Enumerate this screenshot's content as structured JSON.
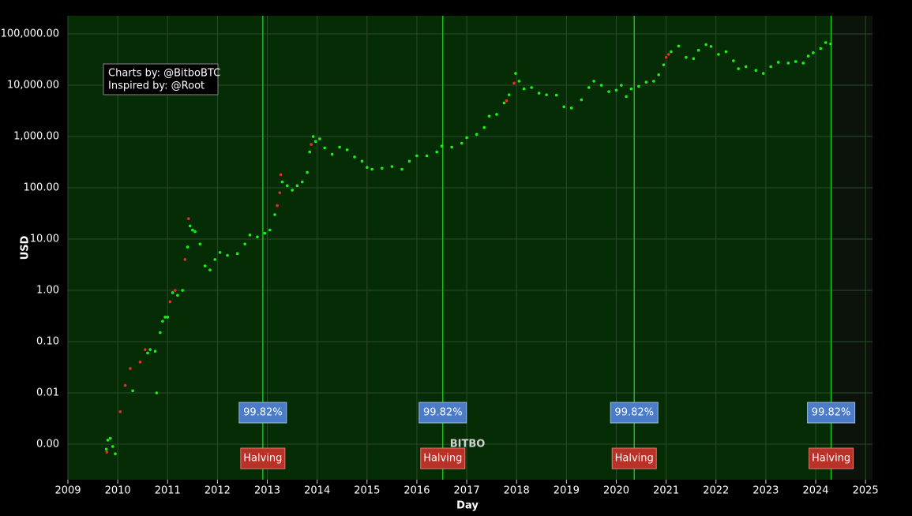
{
  "chart_data": {
    "type": "scatter",
    "y_label": "USD",
    "x_label": "Day",
    "log_y": true,
    "grid": true,
    "xlim": [
      2009,
      2025.14
    ],
    "xticks": [
      2009,
      2010,
      2011,
      2012,
      2013,
      2014,
      2015,
      2016,
      2017,
      2018,
      2019,
      2020,
      2021,
      2022,
      2023,
      2024,
      2025
    ],
    "ylim": [
      0.000203,
      226000
    ],
    "yticks": [
      {
        "value": 0.001,
        "label": "0.00"
      },
      {
        "value": 0.01,
        "label": "0.01"
      },
      {
        "value": 0.1,
        "label": "0.10"
      },
      {
        "value": 1,
        "label": "1.00"
      },
      {
        "value": 10,
        "label": "10.00"
      },
      {
        "value": 100,
        "label": "100.00"
      },
      {
        "value": 1000,
        "label": "1,000.00"
      },
      {
        "value": 10000,
        "label": "10,000.00"
      },
      {
        "value": 100000,
        "label": "100,000.00"
      }
    ],
    "credits": [
      "Charts by: @BitboBTC",
      "Inspired by: @Root"
    ],
    "watermark": "BITBO",
    "halvings": [
      {
        "x": 2012.91,
        "label": "99.82%",
        "event": "Halving"
      },
      {
        "x": 2016.52,
        "label": "99.82%",
        "event": "Halving"
      },
      {
        "x": 2020.36,
        "label": "99.82%",
        "event": "Halving"
      },
      {
        "x": 2024.31,
        "label": "99.82%",
        "event": "Halving"
      }
    ],
    "series": [
      {
        "color": "#19f019",
        "x": [
          2009.77,
          2009.8,
          2009.85,
          2009.9,
          2009.95,
          2010.3,
          2010.6,
          2010.65,
          2010.75,
          2010.78,
          2010.85,
          2010.9,
          2010.95,
          2011.0,
          2011.1,
          2011.2,
          2011.3,
          2011.4,
          2011.45,
          2011.5,
          2011.55,
          2011.65,
          2011.75,
          2011.85,
          2011.95,
          2012.05,
          2012.2,
          2012.4,
          2012.55,
          2012.65,
          2012.8,
          2012.95,
          2013.05,
          2013.15,
          2013.3,
          2013.4,
          2013.5,
          2013.6,
          2013.7,
          2013.8,
          2013.85,
          2013.92,
          2013.97,
          2014.05,
          2014.15,
          2014.3,
          2014.45,
          2014.6,
          2014.75,
          2014.9,
          2015.0,
          2015.1,
          2015.3,
          2015.5,
          2015.7,
          2015.85,
          2016.0,
          2016.2,
          2016.4,
          2016.5,
          2016.7,
          2016.9,
          2017.0,
          2017.2,
          2017.35,
          2017.45,
          2017.6,
          2017.75,
          2017.85,
          2017.98,
          2018.05,
          2018.15,
          2018.3,
          2018.45,
          2018.6,
          2018.8,
          2018.95,
          2019.1,
          2019.3,
          2019.45,
          2019.55,
          2019.7,
          2019.85,
          2020.0,
          2020.1,
          2020.2,
          2020.3,
          2020.45,
          2020.6,
          2020.75,
          2020.85,
          2020.95,
          2021.1,
          2021.25,
          2021.4,
          2021.55,
          2021.65,
          2021.8,
          2021.9,
          2022.05,
          2022.2,
          2022.35,
          2022.45,
          2022.6,
          2022.8,
          2022.95,
          2023.1,
          2023.25,
          2023.45,
          2023.6,
          2023.75,
          2023.85,
          2023.95,
          2024.1,
          2024.2,
          2024.3
        ],
        "values": [
          0.0008,
          0.0012,
          0.0013,
          0.0009,
          0.00065,
          0.011,
          0.06,
          0.07,
          0.065,
          0.01,
          0.15,
          0.25,
          0.3,
          0.3,
          0.9,
          0.8,
          1.0,
          7,
          18,
          15,
          14,
          8,
          3,
          2.5,
          4,
          5.5,
          4.8,
          5.2,
          8,
          12,
          11,
          13,
          15,
          30,
          130,
          110,
          90,
          110,
          130,
          200,
          500,
          1000,
          800,
          900,
          600,
          450,
          620,
          550,
          400,
          330,
          250,
          230,
          240,
          260,
          230,
          330,
          420,
          420,
          500,
          650,
          620,
          740,
          950,
          1100,
          1500,
          2500,
          2700,
          4500,
          6500,
          17000,
          12000,
          8500,
          9000,
          7000,
          6500,
          6400,
          3800,
          3600,
          5200,
          9000,
          12000,
          10000,
          7500,
          8000,
          10000,
          6000,
          8500,
          9500,
          11500,
          12000,
          16000,
          25000,
          45000,
          58000,
          35000,
          33000,
          48000,
          62000,
          57000,
          40000,
          45000,
          30000,
          21000,
          23000,
          19500,
          17000,
          23000,
          28000,
          27000,
          29000,
          27000,
          37000,
          43000,
          52000,
          68000,
          64000
        ]
      },
      {
        "color": "#e0302a",
        "x": [
          2009.78,
          2010.05,
          2010.15,
          2010.25,
          2010.45,
          2010.55,
          2011.05,
          2011.15,
          2011.35,
          2011.42,
          2013.2,
          2013.25,
          2013.27,
          2013.88,
          2017.8,
          2017.95,
          2021.0,
          2021.05
        ],
        "values": [
          0.0007,
          0.0043,
          0.014,
          0.03,
          0.04,
          0.07,
          0.6,
          1.0,
          4,
          25,
          45,
          80,
          180,
          700,
          5000,
          11000,
          35000,
          40000
        ]
      }
    ]
  }
}
